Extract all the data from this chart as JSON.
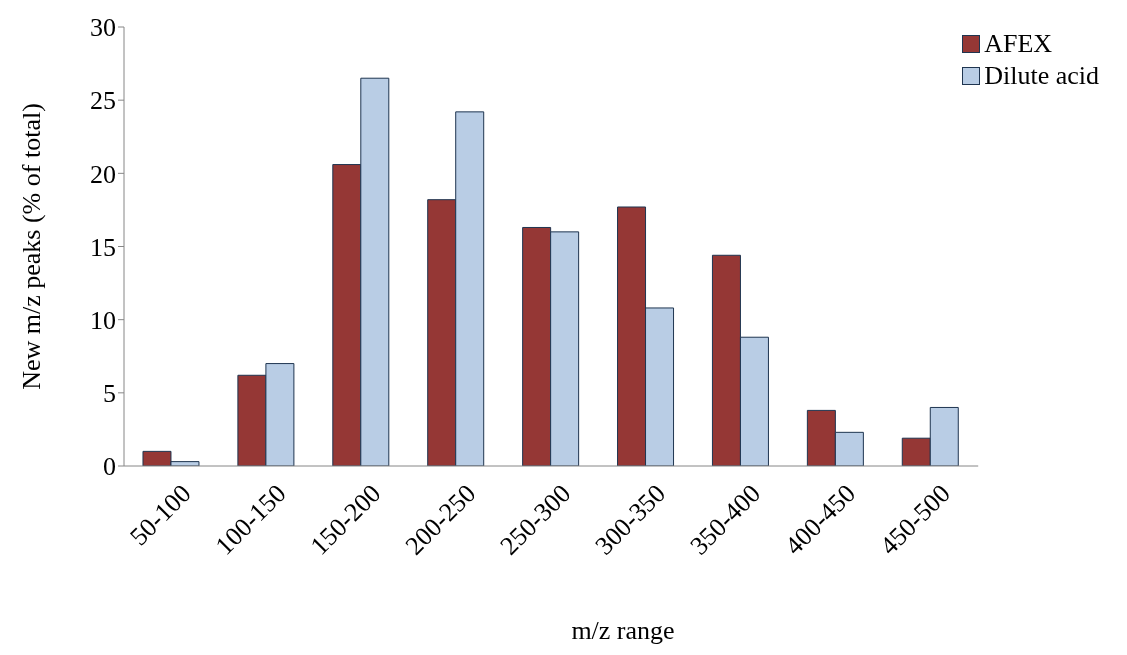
{
  "chart_data": {
    "type": "bar",
    "xlabel": "m/z range",
    "ylabel": "New m/z peaks (% of total)",
    "categories": [
      "50-100",
      "100-150",
      "150-200",
      "200-250",
      "250-300",
      "300-350",
      "350-400",
      "400-450",
      "450-500"
    ],
    "series": [
      {
        "name": "AFEX",
        "color": "#953735",
        "values": [
          1.0,
          6.2,
          20.6,
          18.2,
          16.3,
          17.7,
          14.4,
          3.8,
          1.9
        ]
      },
      {
        "name": "Dilute acid",
        "color": "#b9cde5",
        "values": [
          0.3,
          7.0,
          26.5,
          24.2,
          16.0,
          10.8,
          8.8,
          2.3,
          4.0
        ]
      }
    ],
    "ylim": [
      0,
      30
    ],
    "yticks": [
      0,
      5,
      10,
      15,
      20,
      25,
      30
    ],
    "grid": false,
    "legend": "top right"
  }
}
